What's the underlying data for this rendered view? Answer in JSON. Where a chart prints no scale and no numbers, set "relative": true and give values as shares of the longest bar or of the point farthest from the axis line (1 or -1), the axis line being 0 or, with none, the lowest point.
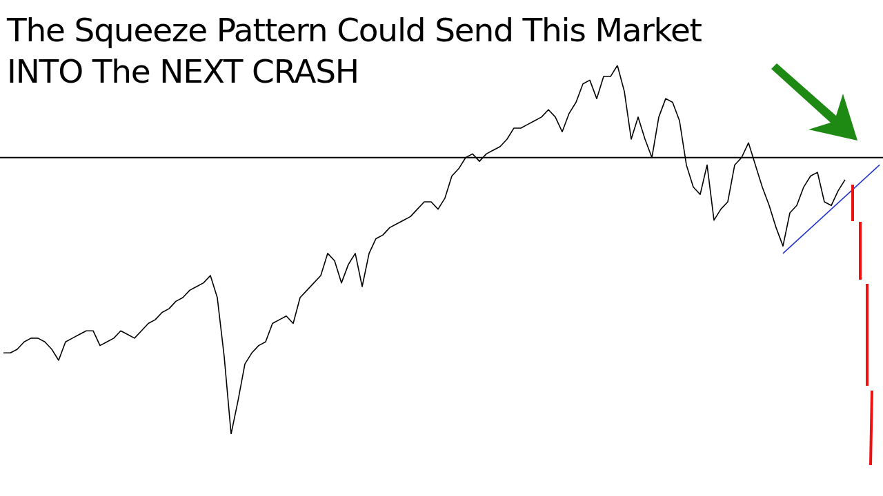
{
  "chart_data": {
    "type": "line",
    "title": "The Squeeze Pattern Could Send This Market INTO The NEXT CRASH",
    "relative": true,
    "categories": [
      null,
      null,
      null,
      null,
      null,
      null,
      null,
      null,
      null,
      null,
      null,
      null,
      null,
      null,
      null,
      null,
      null,
      null,
      null,
      null,
      null,
      null,
      null,
      null,
      null,
      null,
      null,
      null,
      null,
      null,
      null,
      null,
      null,
      null,
      null,
      null,
      null,
      null,
      null,
      null,
      null,
      null,
      null,
      null,
      null,
      null,
      null,
      null,
      null,
      null,
      null,
      null,
      null,
      null,
      null,
      null,
      null,
      null,
      null,
      null,
      null,
      null,
      null,
      null,
      null,
      null,
      null,
      null,
      null,
      null,
      null,
      null,
      null,
      null,
      null,
      null,
      null,
      null,
      null,
      null,
      null,
      null,
      null,
      null,
      null,
      null,
      null,
      null,
      null,
      null,
      null,
      null,
      null,
      null,
      null,
      null,
      null,
      null,
      null,
      null,
      null,
      null,
      null,
      null,
      null,
      null,
      null,
      null,
      null,
      null,
      null,
      null,
      null,
      null,
      null,
      null,
      null,
      null,
      null,
      null,
      null,
      null,
      null,
      null,
      null,
      null,
      null,
      null
    ],
    "series": [
      {
        "color": "#000000",
        "values": [
          0.22,
          0.22,
          0.23,
          0.25,
          0.26,
          0.26,
          0.25,
          0.23,
          0.2,
          0.25,
          0.26,
          0.27,
          0.28,
          0.28,
          0.24,
          0.25,
          0.26,
          0.28,
          0.27,
          0.26,
          0.28,
          0.3,
          0.31,
          0.33,
          0.34,
          0.36,
          0.37,
          0.39,
          0.4,
          0.41,
          0.43,
          0.37,
          0.21,
          0.0,
          0.09,
          0.19,
          0.22,
          0.24,
          0.25,
          0.3,
          0.31,
          0.32,
          0.3,
          0.37,
          0.39,
          0.41,
          0.43,
          0.49,
          0.47,
          0.41,
          0.46,
          0.49,
          0.4,
          0.49,
          0.53,
          0.54,
          0.56,
          0.57,
          0.58,
          0.59,
          0.61,
          0.63,
          0.63,
          0.61,
          0.64,
          0.7,
          0.72,
          0.75,
          0.76,
          0.74,
          0.76,
          0.77,
          0.78,
          0.8,
          0.83,
          0.83,
          0.84,
          0.85,
          0.86,
          0.88,
          0.86,
          0.82,
          0.87,
          0.9,
          0.95,
          0.96,
          0.91,
          0.97,
          0.97,
          1.0,
          0.93,
          0.8,
          0.86,
          0.8,
          0.75,
          0.86,
          0.91,
          0.9,
          0.85,
          0.73,
          0.67,
          0.65,
          0.73,
          0.58,
          0.61,
          0.63,
          0.73,
          0.75,
          0.79,
          0.73,
          0.67,
          0.62,
          0.56,
          0.51,
          0.6,
          0.62,
          0.67,
          0.7,
          0.71,
          0.63,
          0.62,
          0.66,
          0.69,
          null,
          null,
          null,
          null,
          null
        ]
      },
      {
        "color": "#2233cc",
        "values": [
          null,
          null,
          null,
          null,
          null,
          null,
          null,
          null,
          null,
          null,
          null,
          null,
          null,
          null,
          null,
          null,
          null,
          null,
          null,
          null,
          null,
          null,
          null,
          null,
          null,
          null,
          null,
          null,
          null,
          null,
          null,
          null,
          null,
          null,
          null,
          null,
          null,
          null,
          null,
          null,
          null,
          null,
          null,
          null,
          null,
          null,
          null,
          null,
          null,
          null,
          null,
          null,
          null,
          null,
          null,
          null,
          null,
          null,
          null,
          null,
          null,
          null,
          null,
          null,
          null,
          null,
          null,
          null,
          null,
          null,
          null,
          null,
          null,
          null,
          null,
          null,
          null,
          null,
          null,
          null,
          null,
          null,
          null,
          null,
          null,
          null,
          null,
          null,
          null,
          null,
          null,
          null,
          null,
          null,
          null,
          null,
          null,
          null,
          null,
          null,
          null,
          null,
          null,
          null,
          null,
          null,
          null,
          null,
          null,
          null,
          null,
          null,
          null,
          0.49,
          null,
          null,
          null,
          null,
          null,
          null,
          null,
          null,
          null,
          null,
          null,
          null,
          null,
          0.73
        ]
      }
    ],
    "ref_lines": [
      {
        "axis": "y",
        "value": 0.75,
        "color": "#000000"
      }
    ]
  }
}
